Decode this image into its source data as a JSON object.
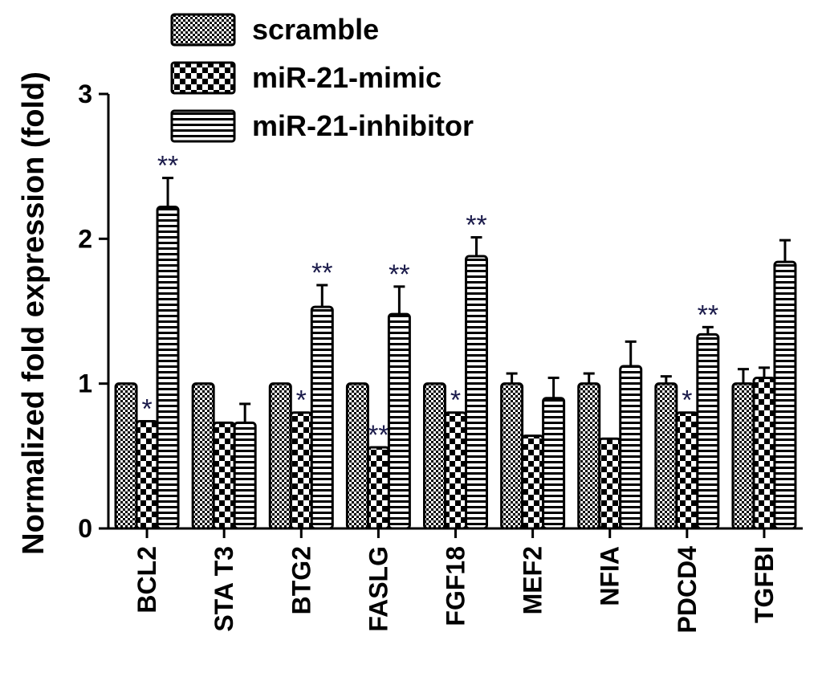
{
  "chart_data": {
    "type": "bar",
    "ylabel": "Normalized fold expression (fold)",
    "xlabel": "",
    "ylim": [
      0,
      3
    ],
    "yticks": [
      "0",
      "1",
      "2",
      "3"
    ],
    "categories": [
      "BCL2",
      "STA T3",
      "BTG2",
      "FASLG",
      "FGF18",
      "MEF2",
      "NFIA",
      "PDCD4",
      "TGFBI"
    ],
    "legend_position": "top",
    "series": [
      {
        "name": "scramble",
        "pattern": "checker",
        "values": [
          1.0,
          1.0,
          1.0,
          1.0,
          1.0,
          1.0,
          1.0,
          1.0,
          1.0
        ],
        "errors": [
          0.0,
          0.0,
          0.0,
          0.0,
          0.0,
          0.07,
          0.07,
          0.05,
          0.1
        ],
        "significance": [
          "",
          "",
          "",
          "",
          "",
          "",
          "",
          "",
          ""
        ]
      },
      {
        "name": "miR-21-mimic",
        "pattern": "big-checker",
        "values": [
          0.74,
          0.73,
          0.8,
          0.56,
          0.8,
          0.64,
          0.62,
          0.8,
          1.04
        ],
        "errors": [
          0.0,
          0.0,
          0.0,
          0.0,
          0.0,
          0.0,
          0.0,
          0.0,
          0.07
        ],
        "significance": [
          "*",
          "",
          "*",
          "**",
          "*",
          "",
          "",
          "*",
          ""
        ]
      },
      {
        "name": "miR-21-inhibitor",
        "pattern": "horizontal-stripes",
        "values": [
          2.22,
          0.73,
          1.53,
          1.48,
          1.88,
          0.9,
          1.12,
          1.34,
          1.84
        ],
        "errors": [
          0.2,
          0.13,
          0.15,
          0.19,
          0.13,
          0.14,
          0.17,
          0.05,
          0.15
        ],
        "significance": [
          "**",
          "",
          "**",
          "**",
          "**",
          "",
          "",
          "**",
          ""
        ]
      }
    ]
  }
}
